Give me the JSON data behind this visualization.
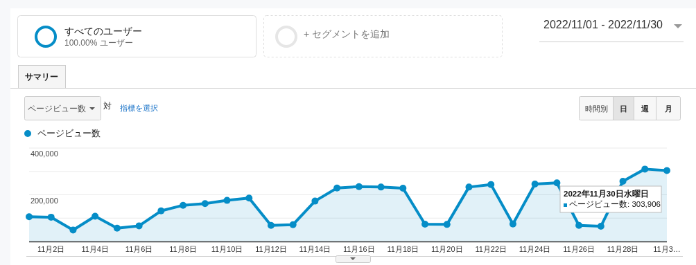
{
  "chart_data": {
    "type": "area",
    "categories": [
      null,
      "11月2日",
      null,
      "11月4日",
      null,
      "11月6日",
      null,
      "11月8日",
      null,
      "11月10日",
      null,
      "11月12日",
      null,
      "11月14日",
      null,
      "11月16日",
      null,
      "11月18日",
      null,
      "11月20日",
      null,
      "11月22日",
      null,
      "11月24日",
      null,
      "11月26日",
      null,
      "11月28日",
      null,
      "11月3…"
    ],
    "series": [
      {
        "name": "ページビュー数",
        "color": "#058dc7",
        "values": [
          106000,
          104000,
          49000,
          108000,
          57000,
          67000,
          131000,
          155000,
          162000,
          176000,
          186000,
          69000,
          72000,
          173000,
          229000,
          235000,
          233000,
          228000,
          74000,
          73000,
          233000,
          244000,
          75000,
          246000,
          251000,
          69000,
          65000,
          258000,
          310000,
          303906
        ]
      }
    ],
    "ylim": [
      0,
      400000
    ],
    "yticks": [
      {
        "value": 100000,
        "label": null
      },
      {
        "value": 200000,
        "label": "200,000"
      },
      {
        "value": 300000,
        "label": null
      },
      {
        "value": 400000,
        "label": "400,000"
      }
    ],
    "grid": "y",
    "legend": "top left",
    "marker": "circle",
    "annotations": [
      "すべてのユーザー",
      "100.00% ユーザー",
      "+ セグメントを追加",
      "2022/11/01 - 2022/11/30",
      "サマリー",
      "ページビュー数",
      "対",
      "指標を選択",
      "時間別",
      "日",
      "週",
      "月",
      "2022年11月30日水曜日",
      "ページビュー数: 303,906"
    ]
  }
}
